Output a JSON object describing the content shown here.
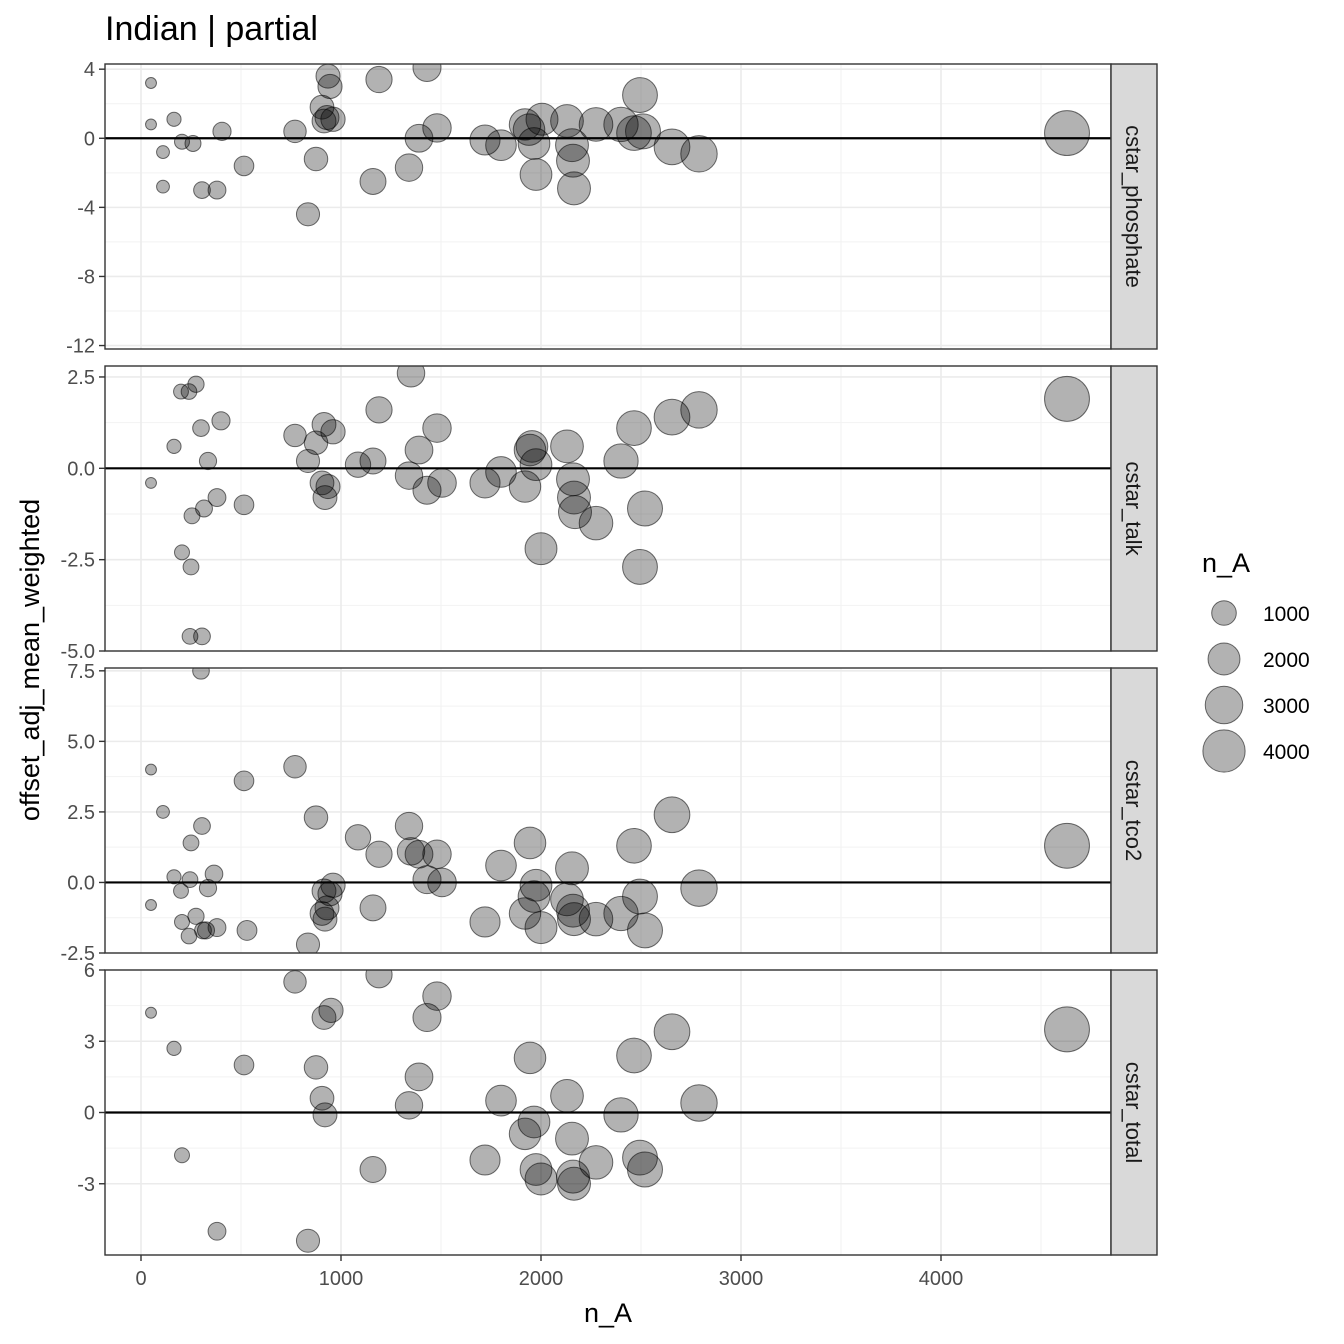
{
  "chart_data": {
    "type": "scatter",
    "title": "Indian | partial",
    "xlabel": "n_A",
    "ylabel": "offset_adj_mean_weighted",
    "xlim": [
      -180,
      4850
    ],
    "x_ticks": [
      0,
      1000,
      2000,
      3000,
      4000
    ],
    "x_tick_labels": [
      "0",
      "1000",
      "2000",
      "3000",
      "4000"
    ],
    "size_legend": {
      "title": "n_A",
      "values": [
        1000,
        2000,
        3000,
        4000
      ],
      "labels": [
        "1000",
        "2000",
        "3000",
        "4000"
      ]
    },
    "point_color": "#000000",
    "point_opacity": 0.3,
    "reference_line_y": 0,
    "grid": true,
    "legend_position": "right",
    "facets": [
      {
        "name": "cstar_phosphate",
        "ylim": [
          -12.2,
          4.3
        ],
        "y_ticks": [
          -12,
          -8,
          -4,
          0,
          4
        ],
        "y_tick_labels": [
          "-12",
          "-8",
          "-4",
          "0",
          "4"
        ],
        "points": [
          {
            "x": 50,
            "y": 3.2
          },
          {
            "x": 50,
            "y": 0.8
          },
          {
            "x": 110,
            "y": -0.8
          },
          {
            "x": 110,
            "y": -2.8
          },
          {
            "x": 165,
            "y": 1.1
          },
          {
            "x": 205,
            "y": -0.2
          },
          {
            "x": 260,
            "y": -0.3
          },
          {
            "x": 305,
            "y": -3.0
          },
          {
            "x": 380,
            "y": -3.0
          },
          {
            "x": 405,
            "y": 0.4
          },
          {
            "x": 515,
            "y": -1.6
          },
          {
            "x": 770,
            "y": 0.4
          },
          {
            "x": 835,
            "y": -4.4
          },
          {
            "x": 875,
            "y": -1.2
          },
          {
            "x": 905,
            "y": 1.8
          },
          {
            "x": 915,
            "y": 1.0
          },
          {
            "x": 930,
            "y": 1.2
          },
          {
            "x": 935,
            "y": 3.6
          },
          {
            "x": 945,
            "y": 3.0
          },
          {
            "x": 960,
            "y": 1.1
          },
          {
            "x": 1160,
            "y": -2.5
          },
          {
            "x": 1190,
            "y": 3.4
          },
          {
            "x": 1340,
            "y": -1.7
          },
          {
            "x": 1390,
            "y": 0.0
          },
          {
            "x": 1430,
            "y": 4.1
          },
          {
            "x": 1480,
            "y": 0.6
          },
          {
            "x": 1720,
            "y": -0.1
          },
          {
            "x": 1800,
            "y": -0.4
          },
          {
            "x": 1920,
            "y": 0.8
          },
          {
            "x": 1940,
            "y": 0.5
          },
          {
            "x": 1965,
            "y": -0.3
          },
          {
            "x": 1975,
            "y": -2.1
          },
          {
            "x": 2005,
            "y": 1.1
          },
          {
            "x": 2130,
            "y": 1.0
          },
          {
            "x": 2155,
            "y": -0.4
          },
          {
            "x": 2160,
            "y": -1.3
          },
          {
            "x": 2165,
            "y": -2.9
          },
          {
            "x": 2275,
            "y": 0.8
          },
          {
            "x": 2400,
            "y": 0.8
          },
          {
            "x": 2465,
            "y": 0.3
          },
          {
            "x": 2495,
            "y": 2.5
          },
          {
            "x": 2510,
            "y": 0.4
          },
          {
            "x": 2655,
            "y": -0.5
          },
          {
            "x": 2790,
            "y": -0.9
          },
          {
            "x": 4630,
            "y": 0.3
          }
        ]
      },
      {
        "name": "cstar_talk",
        "ylim": [
          -5.0,
          2.8
        ],
        "y_ticks": [
          -5.0,
          -2.5,
          0.0,
          2.5
        ],
        "y_tick_labels": [
          "-5.0",
          "-2.5",
          "0.0",
          "2.5"
        ],
        "points": [
          {
            "x": 50,
            "y": -0.4
          },
          {
            "x": 165,
            "y": 0.6
          },
          {
            "x": 200,
            "y": 2.1
          },
          {
            "x": 205,
            "y": -2.3
          },
          {
            "x": 240,
            "y": 2.1
          },
          {
            "x": 245,
            "y": -4.6
          },
          {
            "x": 250,
            "y": -2.7
          },
          {
            "x": 255,
            "y": -1.3
          },
          {
            "x": 275,
            "y": 2.3
          },
          {
            "x": 300,
            "y": 1.1
          },
          {
            "x": 305,
            "y": -4.6
          },
          {
            "x": 315,
            "y": -1.1
          },
          {
            "x": 335,
            "y": 0.2
          },
          {
            "x": 380,
            "y": -0.8
          },
          {
            "x": 400,
            "y": 1.3
          },
          {
            "x": 515,
            "y": -1.0
          },
          {
            "x": 770,
            "y": 0.9
          },
          {
            "x": 835,
            "y": 0.2
          },
          {
            "x": 875,
            "y": 0.7
          },
          {
            "x": 905,
            "y": -0.4
          },
          {
            "x": 915,
            "y": 1.2
          },
          {
            "x": 920,
            "y": -0.8
          },
          {
            "x": 935,
            "y": -0.5
          },
          {
            "x": 960,
            "y": 1.0
          },
          {
            "x": 1085,
            "y": 0.1
          },
          {
            "x": 1160,
            "y": 0.2
          },
          {
            "x": 1190,
            "y": 1.6
          },
          {
            "x": 1340,
            "y": -0.2
          },
          {
            "x": 1350,
            "y": 2.6
          },
          {
            "x": 1390,
            "y": 0.5
          },
          {
            "x": 1430,
            "y": -0.6
          },
          {
            "x": 1480,
            "y": 1.1
          },
          {
            "x": 1505,
            "y": -0.4
          },
          {
            "x": 1720,
            "y": -0.4
          },
          {
            "x": 1800,
            "y": -0.1
          },
          {
            "x": 1920,
            "y": -0.5
          },
          {
            "x": 1945,
            "y": 0.5
          },
          {
            "x": 1955,
            "y": 0.6
          },
          {
            "x": 1975,
            "y": 0.1
          },
          {
            "x": 2000,
            "y": -2.2
          },
          {
            "x": 2130,
            "y": 0.6
          },
          {
            "x": 2160,
            "y": -0.3
          },
          {
            "x": 2165,
            "y": -0.8
          },
          {
            "x": 2170,
            "y": -1.2
          },
          {
            "x": 2275,
            "y": -1.5
          },
          {
            "x": 2400,
            "y": 0.2
          },
          {
            "x": 2465,
            "y": 1.1
          },
          {
            "x": 2495,
            "y": -2.7
          },
          {
            "x": 2520,
            "y": -1.1
          },
          {
            "x": 2655,
            "y": 1.4
          },
          {
            "x": 2790,
            "y": 1.6
          },
          {
            "x": 4630,
            "y": 1.9
          }
        ]
      },
      {
        "name": "cstar_tco2",
        "ylim": [
          -2.5,
          7.6
        ],
        "y_ticks": [
          -2.5,
          0.0,
          2.5,
          5.0,
          7.5
        ],
        "y_tick_labels": [
          "-2.5",
          "0.0",
          "2.5",
          "5.0",
          "7.5"
        ],
        "points": [
          {
            "x": 50,
            "y": 4.0
          },
          {
            "x": 50,
            "y": -0.8
          },
          {
            "x": 110,
            "y": 2.5
          },
          {
            "x": 165,
            "y": 0.2
          },
          {
            "x": 200,
            "y": -0.3
          },
          {
            "x": 205,
            "y": -1.4
          },
          {
            "x": 240,
            "y": -1.9
          },
          {
            "x": 245,
            "y": 0.1
          },
          {
            "x": 250,
            "y": 1.4
          },
          {
            "x": 275,
            "y": -1.2
          },
          {
            "x": 300,
            "y": 7.5
          },
          {
            "x": 305,
            "y": 2.0
          },
          {
            "x": 310,
            "y": -1.7
          },
          {
            "x": 325,
            "y": -1.7
          },
          {
            "x": 335,
            "y": -0.2
          },
          {
            "x": 365,
            "y": 0.3
          },
          {
            "x": 380,
            "y": -1.6
          },
          {
            "x": 515,
            "y": 3.6
          },
          {
            "x": 530,
            "y": -1.7
          },
          {
            "x": 770,
            "y": 4.1
          },
          {
            "x": 835,
            "y": -2.2
          },
          {
            "x": 875,
            "y": 2.3
          },
          {
            "x": 905,
            "y": -1.1
          },
          {
            "x": 915,
            "y": -0.3
          },
          {
            "x": 920,
            "y": -1.3
          },
          {
            "x": 930,
            "y": -0.9
          },
          {
            "x": 945,
            "y": -0.4
          },
          {
            "x": 960,
            "y": -0.1
          },
          {
            "x": 1085,
            "y": 1.6
          },
          {
            "x": 1160,
            "y": -0.9
          },
          {
            "x": 1190,
            "y": 1.0
          },
          {
            "x": 1340,
            "y": 2.0
          },
          {
            "x": 1350,
            "y": 1.1
          },
          {
            "x": 1390,
            "y": 1.0
          },
          {
            "x": 1430,
            "y": 0.1
          },
          {
            "x": 1480,
            "y": 1.0
          },
          {
            "x": 1505,
            "y": 0.0
          },
          {
            "x": 1720,
            "y": -1.4
          },
          {
            "x": 1800,
            "y": 0.6
          },
          {
            "x": 1920,
            "y": -1.1
          },
          {
            "x": 1945,
            "y": 1.4
          },
          {
            "x": 1965,
            "y": -0.5
          },
          {
            "x": 1975,
            "y": -0.1
          },
          {
            "x": 2000,
            "y": -1.6
          },
          {
            "x": 2130,
            "y": -0.6
          },
          {
            "x": 2155,
            "y": 0.5
          },
          {
            "x": 2160,
            "y": -1.0
          },
          {
            "x": 2165,
            "y": -1.3
          },
          {
            "x": 2275,
            "y": -1.3
          },
          {
            "x": 2400,
            "y": -1.1
          },
          {
            "x": 2465,
            "y": 1.3
          },
          {
            "x": 2495,
            "y": -0.5
          },
          {
            "x": 2520,
            "y": -1.7
          },
          {
            "x": 2655,
            "y": 2.4
          },
          {
            "x": 2790,
            "y": -0.2
          },
          {
            "x": 4630,
            "y": 1.3
          }
        ]
      },
      {
        "name": "cstar_total",
        "ylim": [
          -6.0,
          6.0
        ],
        "y_ticks": [
          -3,
          0,
          3,
          6
        ],
        "y_tick_labels": [
          "-3",
          "0",
          "3",
          "6"
        ],
        "points": [
          {
            "x": 50,
            "y": 4.2
          },
          {
            "x": 165,
            "y": 2.7
          },
          {
            "x": 205,
            "y": -1.8
          },
          {
            "x": 380,
            "y": -5.0
          },
          {
            "x": 515,
            "y": 2.0
          },
          {
            "x": 770,
            "y": 5.5
          },
          {
            "x": 835,
            "y": -5.4
          },
          {
            "x": 875,
            "y": 1.9
          },
          {
            "x": 905,
            "y": 0.6
          },
          {
            "x": 915,
            "y": 4.0
          },
          {
            "x": 920,
            "y": -0.1
          },
          {
            "x": 950,
            "y": 4.3
          },
          {
            "x": 1160,
            "y": -2.4
          },
          {
            "x": 1190,
            "y": 5.8
          },
          {
            "x": 1340,
            "y": 0.3
          },
          {
            "x": 1390,
            "y": 1.5
          },
          {
            "x": 1430,
            "y": 4.0
          },
          {
            "x": 1480,
            "y": 4.9
          },
          {
            "x": 1720,
            "y": -2.0
          },
          {
            "x": 1800,
            "y": 0.5
          },
          {
            "x": 1920,
            "y": -0.9
          },
          {
            "x": 1945,
            "y": 2.3
          },
          {
            "x": 1965,
            "y": -0.4
          },
          {
            "x": 1975,
            "y": -2.4
          },
          {
            "x": 2000,
            "y": -2.8
          },
          {
            "x": 2130,
            "y": 0.7
          },
          {
            "x": 2155,
            "y": -1.1
          },
          {
            "x": 2160,
            "y": -2.7
          },
          {
            "x": 2165,
            "y": -3.0
          },
          {
            "x": 2275,
            "y": -2.1
          },
          {
            "x": 2400,
            "y": -0.1
          },
          {
            "x": 2465,
            "y": 2.4
          },
          {
            "x": 2495,
            "y": -1.9
          },
          {
            "x": 2520,
            "y": -2.4
          },
          {
            "x": 2655,
            "y": 3.4
          },
          {
            "x": 2790,
            "y": 0.4
          },
          {
            "x": 4630,
            "y": 3.5
          }
        ]
      }
    ]
  }
}
